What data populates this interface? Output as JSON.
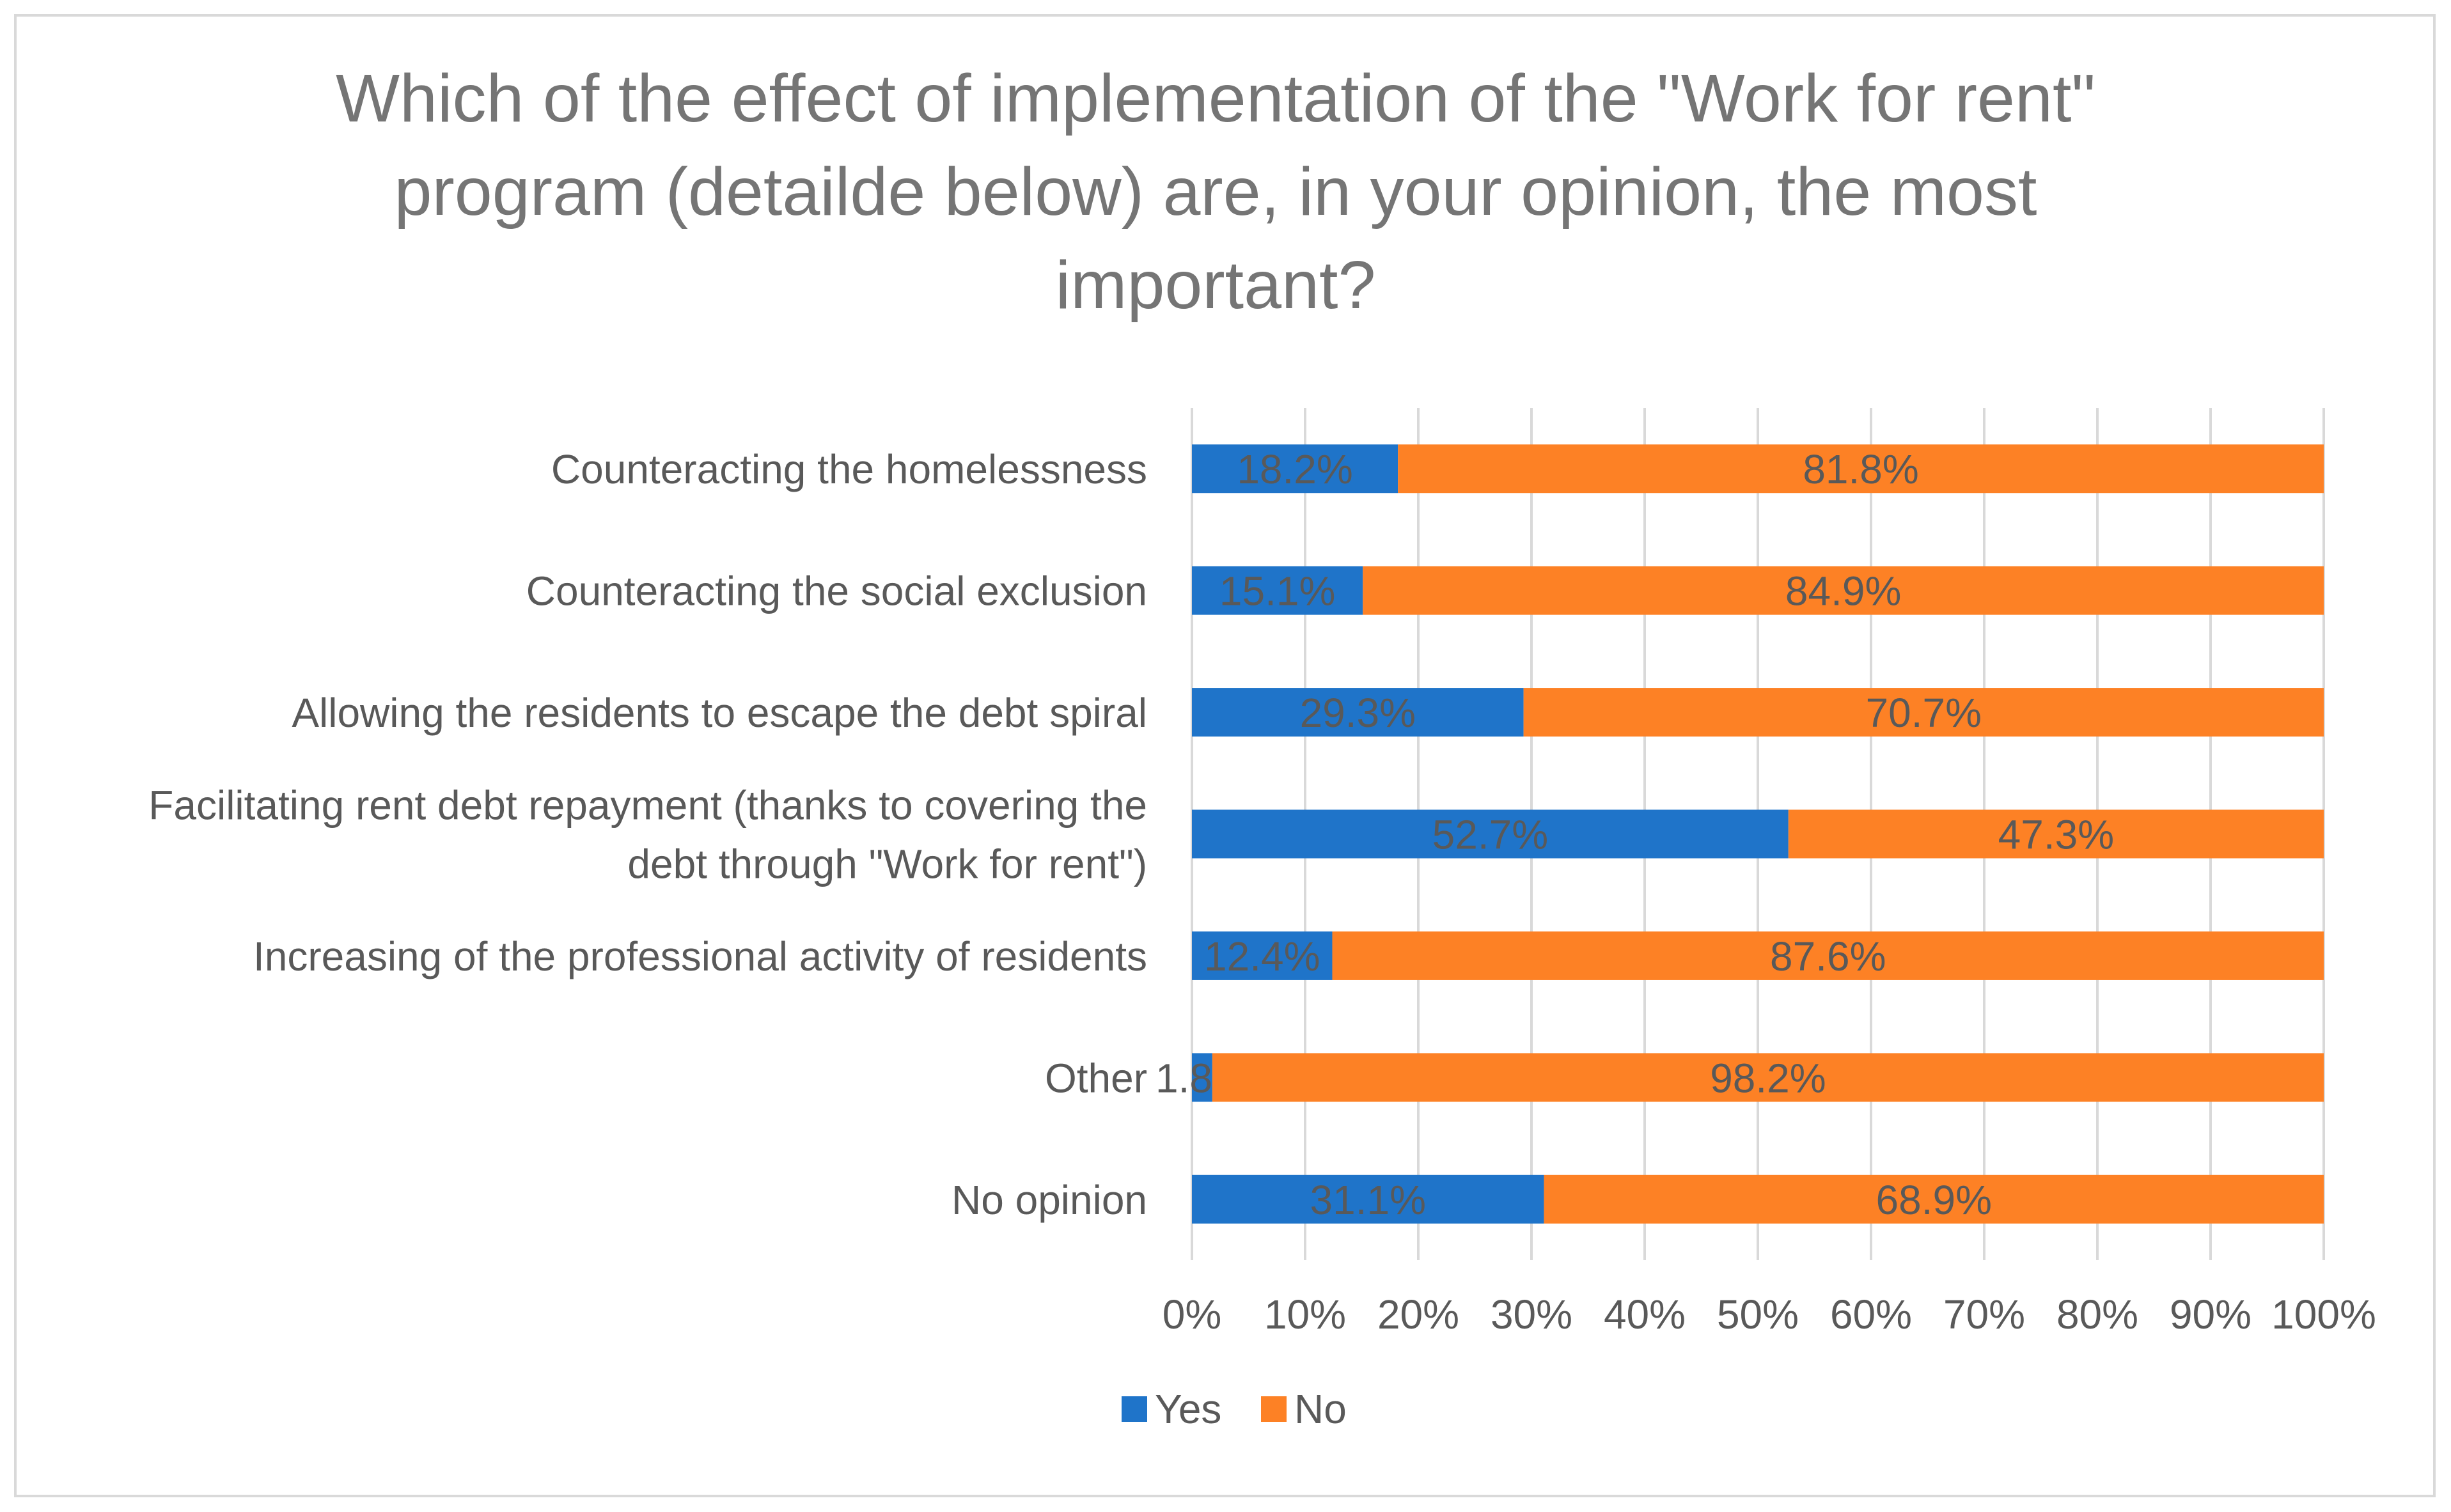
{
  "chart_data": {
    "type": "bar",
    "orientation": "horizontal",
    "stacked": "percent",
    "title": "Which of the effect of implementation of the \"Work for rent\" program (detailde below) are, in your opinion, the most important?",
    "title_lines": [
      "Which of the effect of implementation of the \"Work for rent\"",
      "program (detailde below) are, in your opinion, the most",
      "important?"
    ],
    "categories": [
      [
        "Counteracting the homelessness"
      ],
      [
        "Counteracting the social exclusion"
      ],
      [
        "Allowing the residents to escape the debt spiral"
      ],
      [
        "Facilitating rent debt repayment (thanks to covering the",
        "debt through \"Work for rent\")"
      ],
      [
        "Increasing of the professional activity of residents"
      ],
      [
        "Other"
      ],
      [
        "No opinion"
      ]
    ],
    "series": [
      {
        "name": "Yes",
        "color": "#1f74c9",
        "values": [
          18.2,
          15.1,
          29.3,
          52.7,
          12.4,
          1.8,
          31.1
        ],
        "labels": [
          "18.2%",
          "15.1%",
          "29.3%",
          "52.7%",
          "12.4%",
          "1.8%",
          "31.1%"
        ]
      },
      {
        "name": "No",
        "color": "#fd8125",
        "values": [
          81.8,
          84.9,
          70.7,
          47.3,
          87.6,
          98.2,
          68.9
        ],
        "labels": [
          "81.8%",
          "84.9%",
          "70.7%",
          "47.3%",
          "87.6%",
          "98.2%",
          "68.9%"
        ]
      }
    ],
    "xlim": [
      0,
      100
    ],
    "xticks": [
      "0%",
      "10%",
      "20%",
      "30%",
      "40%",
      "50%",
      "60%",
      "70%",
      "80%",
      "90%",
      "100%"
    ],
    "xlabel": "",
    "ylabel": "",
    "grid": true,
    "legend": {
      "position": "bottom",
      "entries": [
        "Yes",
        "No"
      ]
    }
  }
}
